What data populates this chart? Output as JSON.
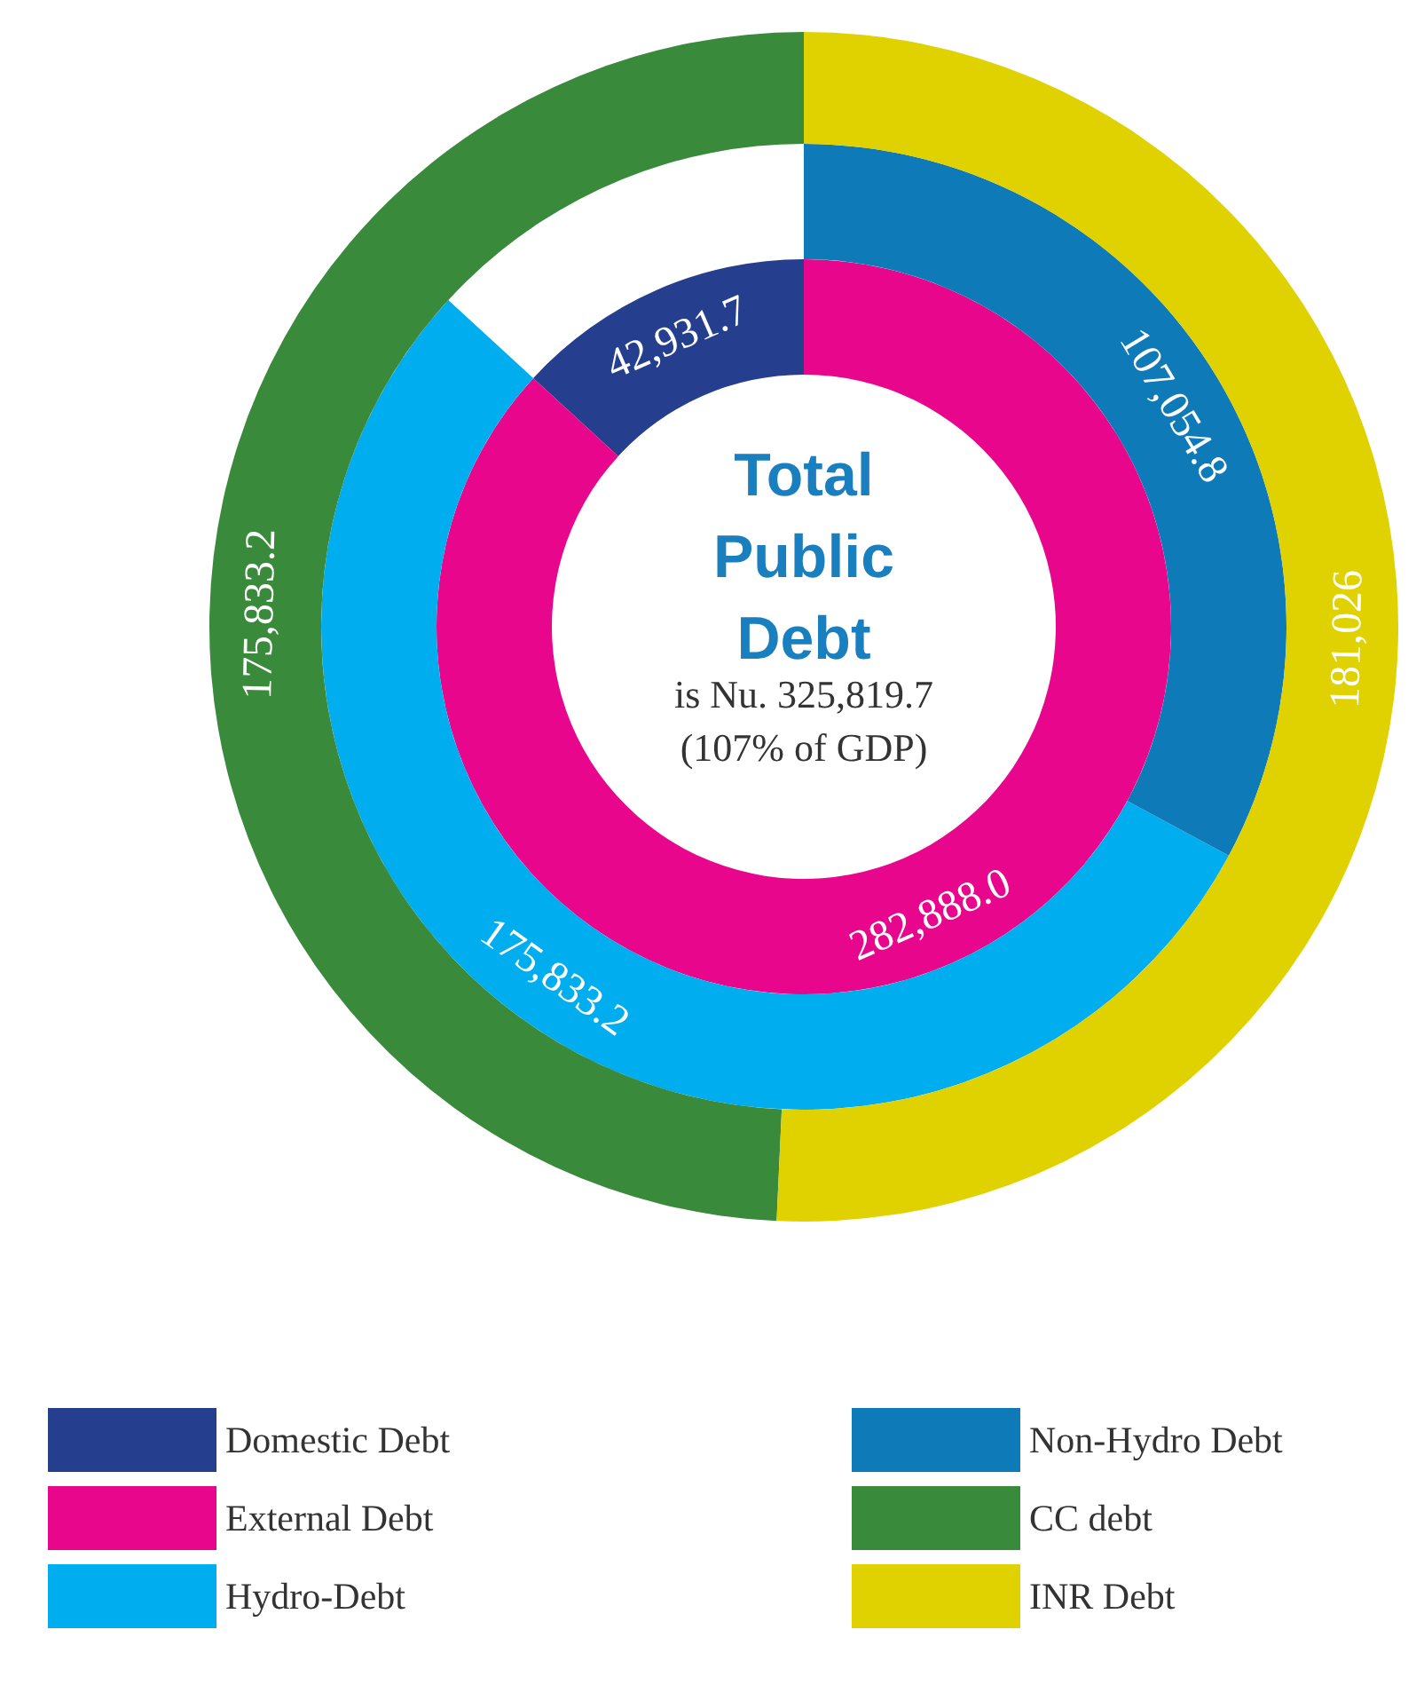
{
  "chart_data": {
    "type": "donut",
    "title": "Total Public Debt",
    "subtitle": "is Nu. 325,819.7 (107% of GDP)",
    "categories": [
      "Domestic Debt",
      "External Debt",
      "Hydro-Debt",
      "Non-Hydro Debt",
      "CC debt",
      "INR Debt"
    ],
    "colors": [
      "#253f8e",
      "#e8078c",
      "#00aeef",
      "#0f7ab8",
      "#3a8a3c",
      "#dfd200"
    ],
    "series": [
      {
        "values": [
          42931.7,
          282888.0,
          null,
          null,
          null,
          null
        ],
        "value_labels": [
          "42,931.7",
          "282,888.0",
          null,
          null,
          null,
          null
        ]
      },
      {
        "values": [
          null,
          null,
          175833.2,
          107054.8,
          null,
          null
        ],
        "value_labels": [
          null,
          null,
          "175,833.2",
          "107,054.8",
          null,
          null
        ]
      },
      {
        "values": [
          null,
          null,
          null,
          null,
          175833.2,
          181026
        ],
        "value_labels": [
          null,
          null,
          null,
          null,
          "175,833.2",
          "181,026"
        ]
      }
    ],
    "data_labels": true,
    "legend": "bottom"
  }
}
